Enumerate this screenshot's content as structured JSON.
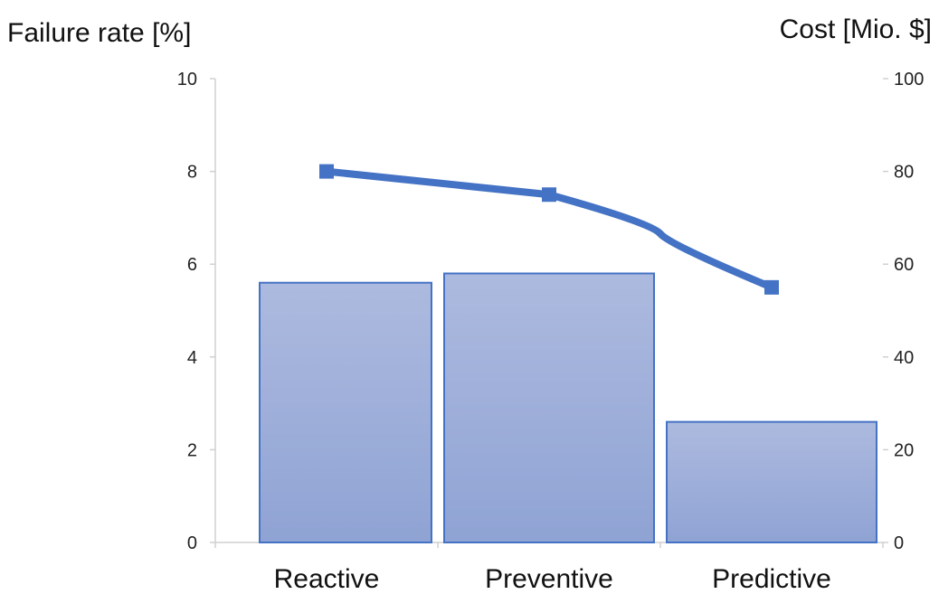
{
  "chart_data": {
    "type": "bar",
    "categories": [
      "Reactive",
      "Preventive",
      "Predictive"
    ],
    "left_axis": {
      "label": "Failure rate [%]",
      "ylim": [
        0,
        10
      ],
      "ticks": [
        "0",
        "2",
        "4",
        "6",
        "8",
        "10"
      ]
    },
    "right_axis": {
      "label": "Cost [Mio. $]",
      "ylim": [
        0,
        100
      ],
      "ticks": [
        "0",
        "20",
        "40",
        "60",
        "80",
        "100"
      ]
    },
    "series": [
      {
        "type": "bar",
        "axis": "left",
        "values": [
          5.6,
          5.8,
          2.6
        ],
        "color": "#8fa3d4"
      },
      {
        "type": "line",
        "axis": "right",
        "values": [
          80,
          75,
          55
        ],
        "color": "#4472c4"
      }
    ],
    "grid": false,
    "legend": "none"
  }
}
